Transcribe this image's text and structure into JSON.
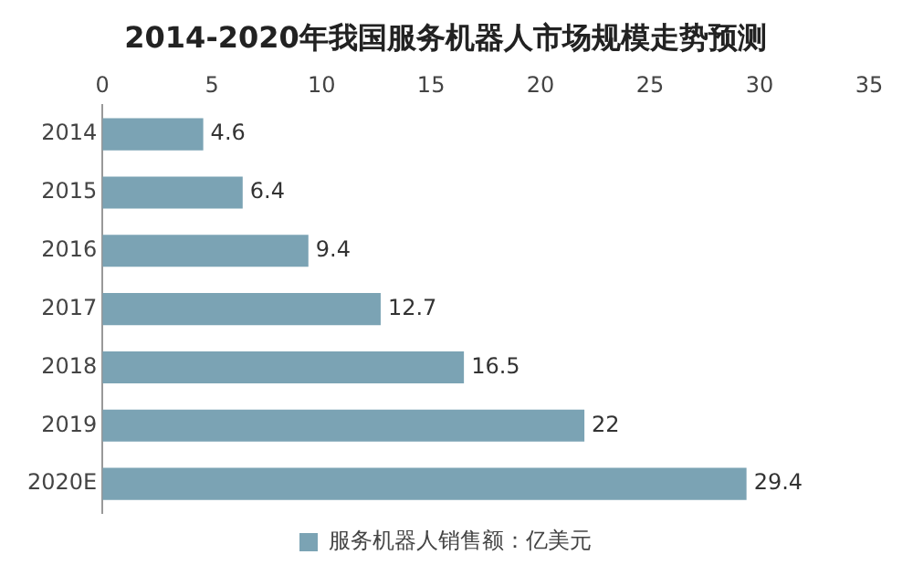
{
  "chart_data": {
    "type": "bar",
    "orientation": "horizontal",
    "title": "2014-2020年我国服务机器人市场规模走势预测",
    "categories": [
      "2014",
      "2015",
      "2016",
      "2017",
      "2018",
      "2019",
      "2020E"
    ],
    "series": [
      {
        "name": "服务机器人销售额：亿美元",
        "color": "#7ba3b4",
        "values": [
          4.6,
          6.4,
          9.4,
          12.7,
          16.5,
          22,
          29.4
        ]
      }
    ],
    "xlim": [
      0,
      35
    ],
    "xticks": [
      0,
      5,
      10,
      15,
      20,
      25,
      30,
      35
    ],
    "data_labels": true,
    "legend": "bottom",
    "grid": false
  }
}
